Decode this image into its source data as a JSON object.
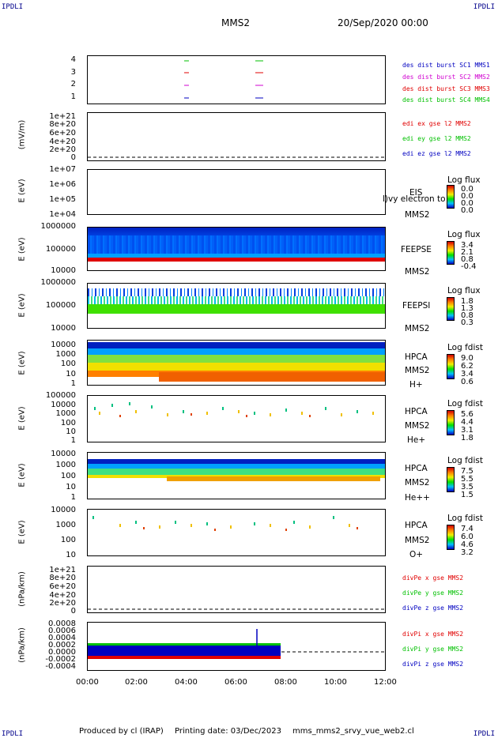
{
  "corners": {
    "tl": "IPDLI",
    "tr": "IPDLI",
    "bl": "IPDLI",
    "br": "IPDLI"
  },
  "header": {
    "spacecraft": "MMS2",
    "datetime": "20/Sep/2020 00:00"
  },
  "footer": {
    "produced": "Produced by cl (IRAP)",
    "printing": "Printing date: 03/Dec/2023",
    "file": "mms_mms2_srvy_vue_web2.cl"
  },
  "x_axis": {
    "labels": [
      "00:00",
      "02:00",
      "04:00",
      "06:00",
      "08:00",
      "10:00",
      "12:00"
    ]
  },
  "colors": {
    "red": "#e00000",
    "green": "#00c000",
    "blue": "#0000c0",
    "magenta": "#d000d0"
  },
  "panels": {
    "p1": {
      "ticks": [
        "4",
        "3",
        "2",
        "1"
      ],
      "legend": [
        {
          "text": "des dist burst SC1 MMS1",
          "color": "#0000c0"
        },
        {
          "text": "des dist burst SC2 MMS2",
          "color": "#d000d0"
        },
        {
          "text": "des dist burst SC3 MMS3",
          "color": "#e00000"
        },
        {
          "text": "des dist burst SC4 MMS4",
          "color": "#00c000"
        }
      ]
    },
    "p2": {
      "ylabel": "(mV/m)",
      "ticks": [
        "1e+21",
        "8e+20",
        "6e+20",
        "4e+20",
        "2e+20",
        "0"
      ],
      "legend": [
        {
          "text": "edi ex gse l2 MMS2",
          "color": "#e00000"
        },
        {
          "text": "edi ey gse l2 MMS2",
          "color": "#00c000"
        },
        {
          "text": "edi ez gse l2 MMS2",
          "color": "#0000c0"
        }
      ]
    },
    "p3": {
      "ylabel": "E (eV)",
      "ticks": [
        "1e+07",
        "1e+06",
        "1e+05",
        "1e+04"
      ],
      "inst": "EIS",
      "inst2": "MMS2",
      "overlay": "l)vy electron to",
      "cb_title": "Log flux",
      "cb_vals": [
        "0.0",
        "0.0",
        "0.0",
        "0.0"
      ]
    },
    "p4": {
      "ylabel": "E (eV)",
      "ticks": [
        "1000000",
        "100000",
        "10000"
      ],
      "inst": "FEEPSE",
      "inst2": "MMS2",
      "cb_title": "Log flux",
      "cb_vals": [
        "3.4",
        "2.1",
        "0.8",
        "-0.4"
      ]
    },
    "p5": {
      "ylabel": "E (eV)",
      "ticks": [
        "1000000",
        "100000",
        "10000"
      ],
      "inst": "FEEPSI",
      "inst2": "MMS2",
      "cb_title": "Log flux",
      "cb_vals": [
        "1.8",
        "1.3",
        "0.8",
        "0.3"
      ]
    },
    "p6": {
      "ylabel": "E (eV)",
      "ticks": [
        "10000",
        "1000",
        "100",
        "10",
        "1"
      ],
      "inst": "HPCA",
      "inst2": "MMS2",
      "species": "H+",
      "cb_title": "Log fdist",
      "cb_vals": [
        "9.0",
        "6.2",
        "3.4",
        "0.6"
      ]
    },
    "p7": {
      "ylabel": "E (eV)",
      "ticks": [
        "100000",
        "10000",
        "1000",
        "100",
        "10",
        "1"
      ],
      "inst": "HPCA",
      "inst2": "MMS2",
      "species": "He+",
      "cb_title": "Log fdist",
      "cb_vals": [
        "5.6",
        "4.4",
        "3.1",
        "1.8"
      ]
    },
    "p8": {
      "ylabel": "E (eV)",
      "ticks": [
        "10000",
        "1000",
        "100",
        "10",
        "1"
      ],
      "inst": "HPCA",
      "inst2": "MMS2",
      "species": "He++",
      "cb_title": "Log fdist",
      "cb_vals": [
        "7.5",
        "5.5",
        "3.5",
        "1.5"
      ]
    },
    "p9": {
      "ylabel": "E (eV)",
      "ticks": [
        "10000",
        "1000",
        "100",
        "10"
      ],
      "inst": "HPCA",
      "inst2": "MMS2",
      "species": "O+",
      "cb_title": "Log fdist",
      "cb_vals": [
        "7.4",
        "6.0",
        "4.6",
        "3.2"
      ]
    },
    "p10": {
      "ylabel": "(nPa/km)",
      "ticks": [
        "1e+21",
        "8e+20",
        "6e+20",
        "4e+20",
        "2e+20",
        "0"
      ],
      "legend": [
        {
          "text": "divPe x gse MMS2",
          "color": "#e00000"
        },
        {
          "text": "divPe y gse MMS2",
          "color": "#00c000"
        },
        {
          "text": "divPe z gse MMS2",
          "color": "#0000c0"
        }
      ]
    },
    "p11": {
      "ylabel": "(nPa/km)",
      "ticks": [
        "0.0008",
        "0.0006",
        "0.0004",
        "0.0002",
        "0.0000",
        "-0.0002",
        "-0.0004"
      ],
      "legend": [
        {
          "text": "divPi x gse MMS2",
          "color": "#e00000"
        },
        {
          "text": "divPi y gse MMS2",
          "color": "#00c000"
        },
        {
          "text": "divPi z gse MMS2",
          "color": "#0000c0"
        }
      ]
    }
  },
  "chart_data": {
    "type": "line",
    "x": [
      "00:00",
      "02:00",
      "04:00",
      "06:00",
      "08:00",
      "10:00",
      "12:00"
    ],
    "burst_intervals": [
      {
        "sc": "MMS1",
        "start": "03:55",
        "end": "04:00"
      },
      {
        "sc": "MMS1",
        "start": "06:55",
        "end": "07:15"
      },
      {
        "sc": "MMS2",
        "start": "03:55",
        "end": "04:00"
      },
      {
        "sc": "MMS2",
        "start": "06:55",
        "end": "07:15"
      },
      {
        "sc": "MMS3",
        "start": "03:55",
        "end": "04:00"
      },
      {
        "sc": "MMS3",
        "start": "06:55",
        "end": "07:15"
      },
      {
        "sc": "MMS4",
        "start": "03:55",
        "end": "04:00"
      },
      {
        "sc": "MMS4",
        "start": "06:55",
        "end": "07:15"
      }
    ],
    "divPi_end_time": "07:45",
    "divPi_spike": {
      "time": "06:58",
      "value": 0.0007
    }
  }
}
